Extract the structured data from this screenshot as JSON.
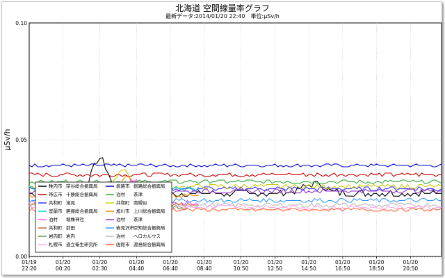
{
  "title": "北海道 空間線量率グラフ",
  "subtitle": "最新データ:2014/01/20 22:40　単位:μSv/h",
  "chart_data": {
    "type": "line",
    "ylabel": "μSv/h",
    "ylim": [
      0,
      0.1
    ],
    "yticks": [
      "0.00",
      "0.05",
      "0.10"
    ],
    "x_ticks": [
      {
        "d": "01/19",
        "t": "22:20",
        "m": 0
      },
      {
        "d": "01/20",
        "t": "00:20",
        "m": 120
      },
      {
        "d": "01/20",
        "t": "02:30",
        "m": 250
      },
      {
        "d": "01/20",
        "t": "04:40",
        "m": 380
      },
      {
        "d": "01/20",
        "t": "06:40",
        "m": 500
      },
      {
        "d": "01/20",
        "t": "08:40",
        "m": 620
      },
      {
        "d": "01/20",
        "t": "10:50",
        "m": 750
      },
      {
        "d": "01/20",
        "t": "12:50",
        "m": 870
      },
      {
        "d": "01/20",
        "t": "14:50",
        "m": 990
      },
      {
        "d": "01/20",
        "t": "16:50",
        "m": 1110
      },
      {
        "d": "01/20",
        "t": "18:50",
        "m": 1230
      },
      {
        "d": "01/20",
        "t": "20:50",
        "m": 1350
      }
    ],
    "x_max_minutes": 1460,
    "series": [
      {
        "name": "稚内市　宗谷総合振興局",
        "color": "#000000",
        "base": 0.027,
        "noise": 0.0012,
        "bumps": [
          [
            250,
            0.042,
            40
          ],
          [
            1010,
            0.031,
            60
          ]
        ],
        "end": 1460
      },
      {
        "name": "釧路市　釧路総合振興局",
        "color": "#0000cc",
        "base": 0.039,
        "noise": 0.0006,
        "bumps": [],
        "end": 1460
      },
      {
        "name": "帯広市　十勝総合振興局",
        "color": "#cc0000",
        "base": 0.035,
        "noise": 0.0007,
        "bumps": [],
        "end": 1460
      },
      {
        "name": "泊村　茶津",
        "color": "#33aa33",
        "base": 0.032,
        "noise": 0.0007,
        "bumps": [],
        "end": 1460
      },
      {
        "name": "共和町　滝見",
        "color": "#3333ff",
        "base": 0.029,
        "noise": 0.0008,
        "bumps": [],
        "end": 1460
      },
      {
        "name": "共和町　南幌似",
        "color": "#cccc00",
        "base": 0.03,
        "noise": 0.0008,
        "bumps": [
          [
            330,
            0.037,
            30
          ]
        ],
        "end": 1460
      },
      {
        "name": "室蘭市　胆振総合振興局",
        "color": "#00cccc",
        "base": 0.029,
        "noise": 0.0008,
        "bumps": [],
        "end": 600
      },
      {
        "name": "旭川市　上川総合振興局",
        "color": "#ee8800",
        "base": 0.026,
        "noise": 0.0008,
        "bumps": [
          [
            350,
            0.035,
            30
          ]
        ],
        "end": 600
      },
      {
        "name": "泊村　堀株神社",
        "color": "#ff55ff",
        "base": 0.023,
        "noise": 0.001,
        "bumps": [
          [
            370,
            0.033,
            30
          ]
        ],
        "end": 600
      },
      {
        "name": "泊村　茶津",
        "color": "#9933cc",
        "base": 0.028,
        "noise": 0.0008,
        "bumps": [],
        "end": 1460
      },
      {
        "name": "共和町　前田",
        "color": "#cc6633",
        "base": 0.022,
        "noise": 0.0008,
        "bumps": [
          [
            390,
            0.029,
            30
          ]
        ],
        "end": 600
      },
      {
        "name": "岩見沢市　空知総合振興局",
        "color": "#3399ff",
        "base": 0.024,
        "noise": 0.0008,
        "bumps": [],
        "end": 1460
      },
      {
        "name": "岩内町　岩内",
        "color": "#669933",
        "base": 0.021,
        "noise": 0.0008,
        "bumps": [
          [
            400,
            0.026,
            25
          ]
        ],
        "end": 600
      },
      {
        "name": "泊村　ヘロカルウス",
        "color": "#bbbbbb",
        "base": 0.022,
        "noise": 0.0008,
        "bumps": [],
        "end": 1460
      },
      {
        "name": "札幌市　道立衛生研究所",
        "color": "#ffaaee",
        "base": 0.021,
        "noise": 0.0008,
        "bumps": [],
        "end": 1460
      },
      {
        "name": "函館市　渡島総合振興局",
        "color": "#ff6633",
        "base": 0.02,
        "noise": 0.0006,
        "bumps": [],
        "end": 1460
      }
    ],
    "legend": [
      [
        "稚内市",
        "宗谷総合振興局",
        "#000000"
      ],
      [
        "釧路市",
        "釧路総合振興局",
        "#0000cc"
      ],
      [
        "帯広市",
        "十勝総合振興局",
        "#cc0000"
      ],
      [
        "泊村",
        "茶津",
        "#33aa33"
      ],
      [
        "共和町",
        "滝見",
        "#3333ff"
      ],
      [
        "共和町",
        "南幌似",
        "#cccc00"
      ],
      [
        "室蘭市",
        "胆振総合振興局",
        "#00cccc"
      ],
      [
        "旭川市",
        "上川総合振興局",
        "#ee8800"
      ],
      [
        "泊村",
        "堀株神社",
        "#ff55ff"
      ],
      [
        "泊村",
        "茶津",
        "#9933cc"
      ],
      [
        "共和町",
        "前田",
        "#cc6633"
      ],
      [
        "岩見沢市",
        "空知総合振興局",
        "#3399ff"
      ],
      [
        "岩内町",
        "岩内",
        "#669933"
      ],
      [
        "泊村",
        "ヘロカルウス",
        "#bbbbbb"
      ],
      [
        "札幌市",
        "道立衛生研究所",
        "#ffaaee"
      ],
      [
        "函館市",
        "渡島総合振興局",
        "#ff6633"
      ]
    ]
  }
}
